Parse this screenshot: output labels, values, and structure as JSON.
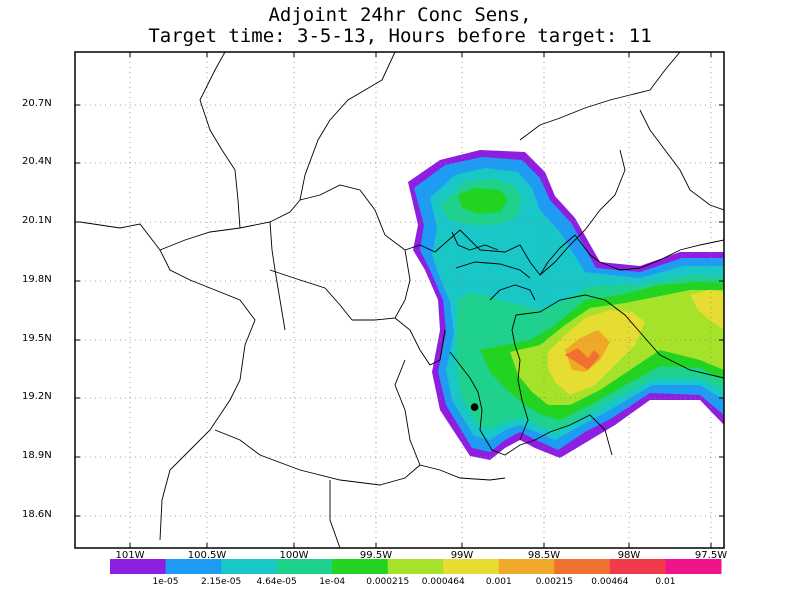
{
  "title": {
    "line1": "Adjoint 24hr Conc Sens,",
    "line2": "Target time: 3-5-13, Hours before target: 11"
  },
  "axes": {
    "y_ticks": [
      "20.7N",
      "20.4N",
      "20.1N",
      "19.8N",
      "19.5N",
      "19.2N",
      "18.9N",
      "18.6N"
    ],
    "x_ticks": [
      "101W",
      "100.5W",
      "100W",
      "99.5W",
      "99W",
      "98.5W",
      "98W",
      "97.5W"
    ],
    "lon_range": [
      -101.3,
      -97.5
    ],
    "lat_range": [
      18.45,
      20.95
    ]
  },
  "colorbar": {
    "labels": [
      "1e-05",
      "2.15e-05",
      "4.64e-05",
      "1e-04",
      "0.000215",
      "0.000464",
      "0.001",
      "0.00215",
      "0.00464",
      "0.01"
    ],
    "colors": [
      "#8f1fe0",
      "#1e9bf2",
      "#19c7c7",
      "#1ed18c",
      "#22d322",
      "#a6e22a",
      "#e6dc32",
      "#f0a828",
      "#f07030",
      "#f03c4a",
      "#f0148c"
    ]
  },
  "marker": {
    "lon": -98.96,
    "lat": 19.16
  }
}
